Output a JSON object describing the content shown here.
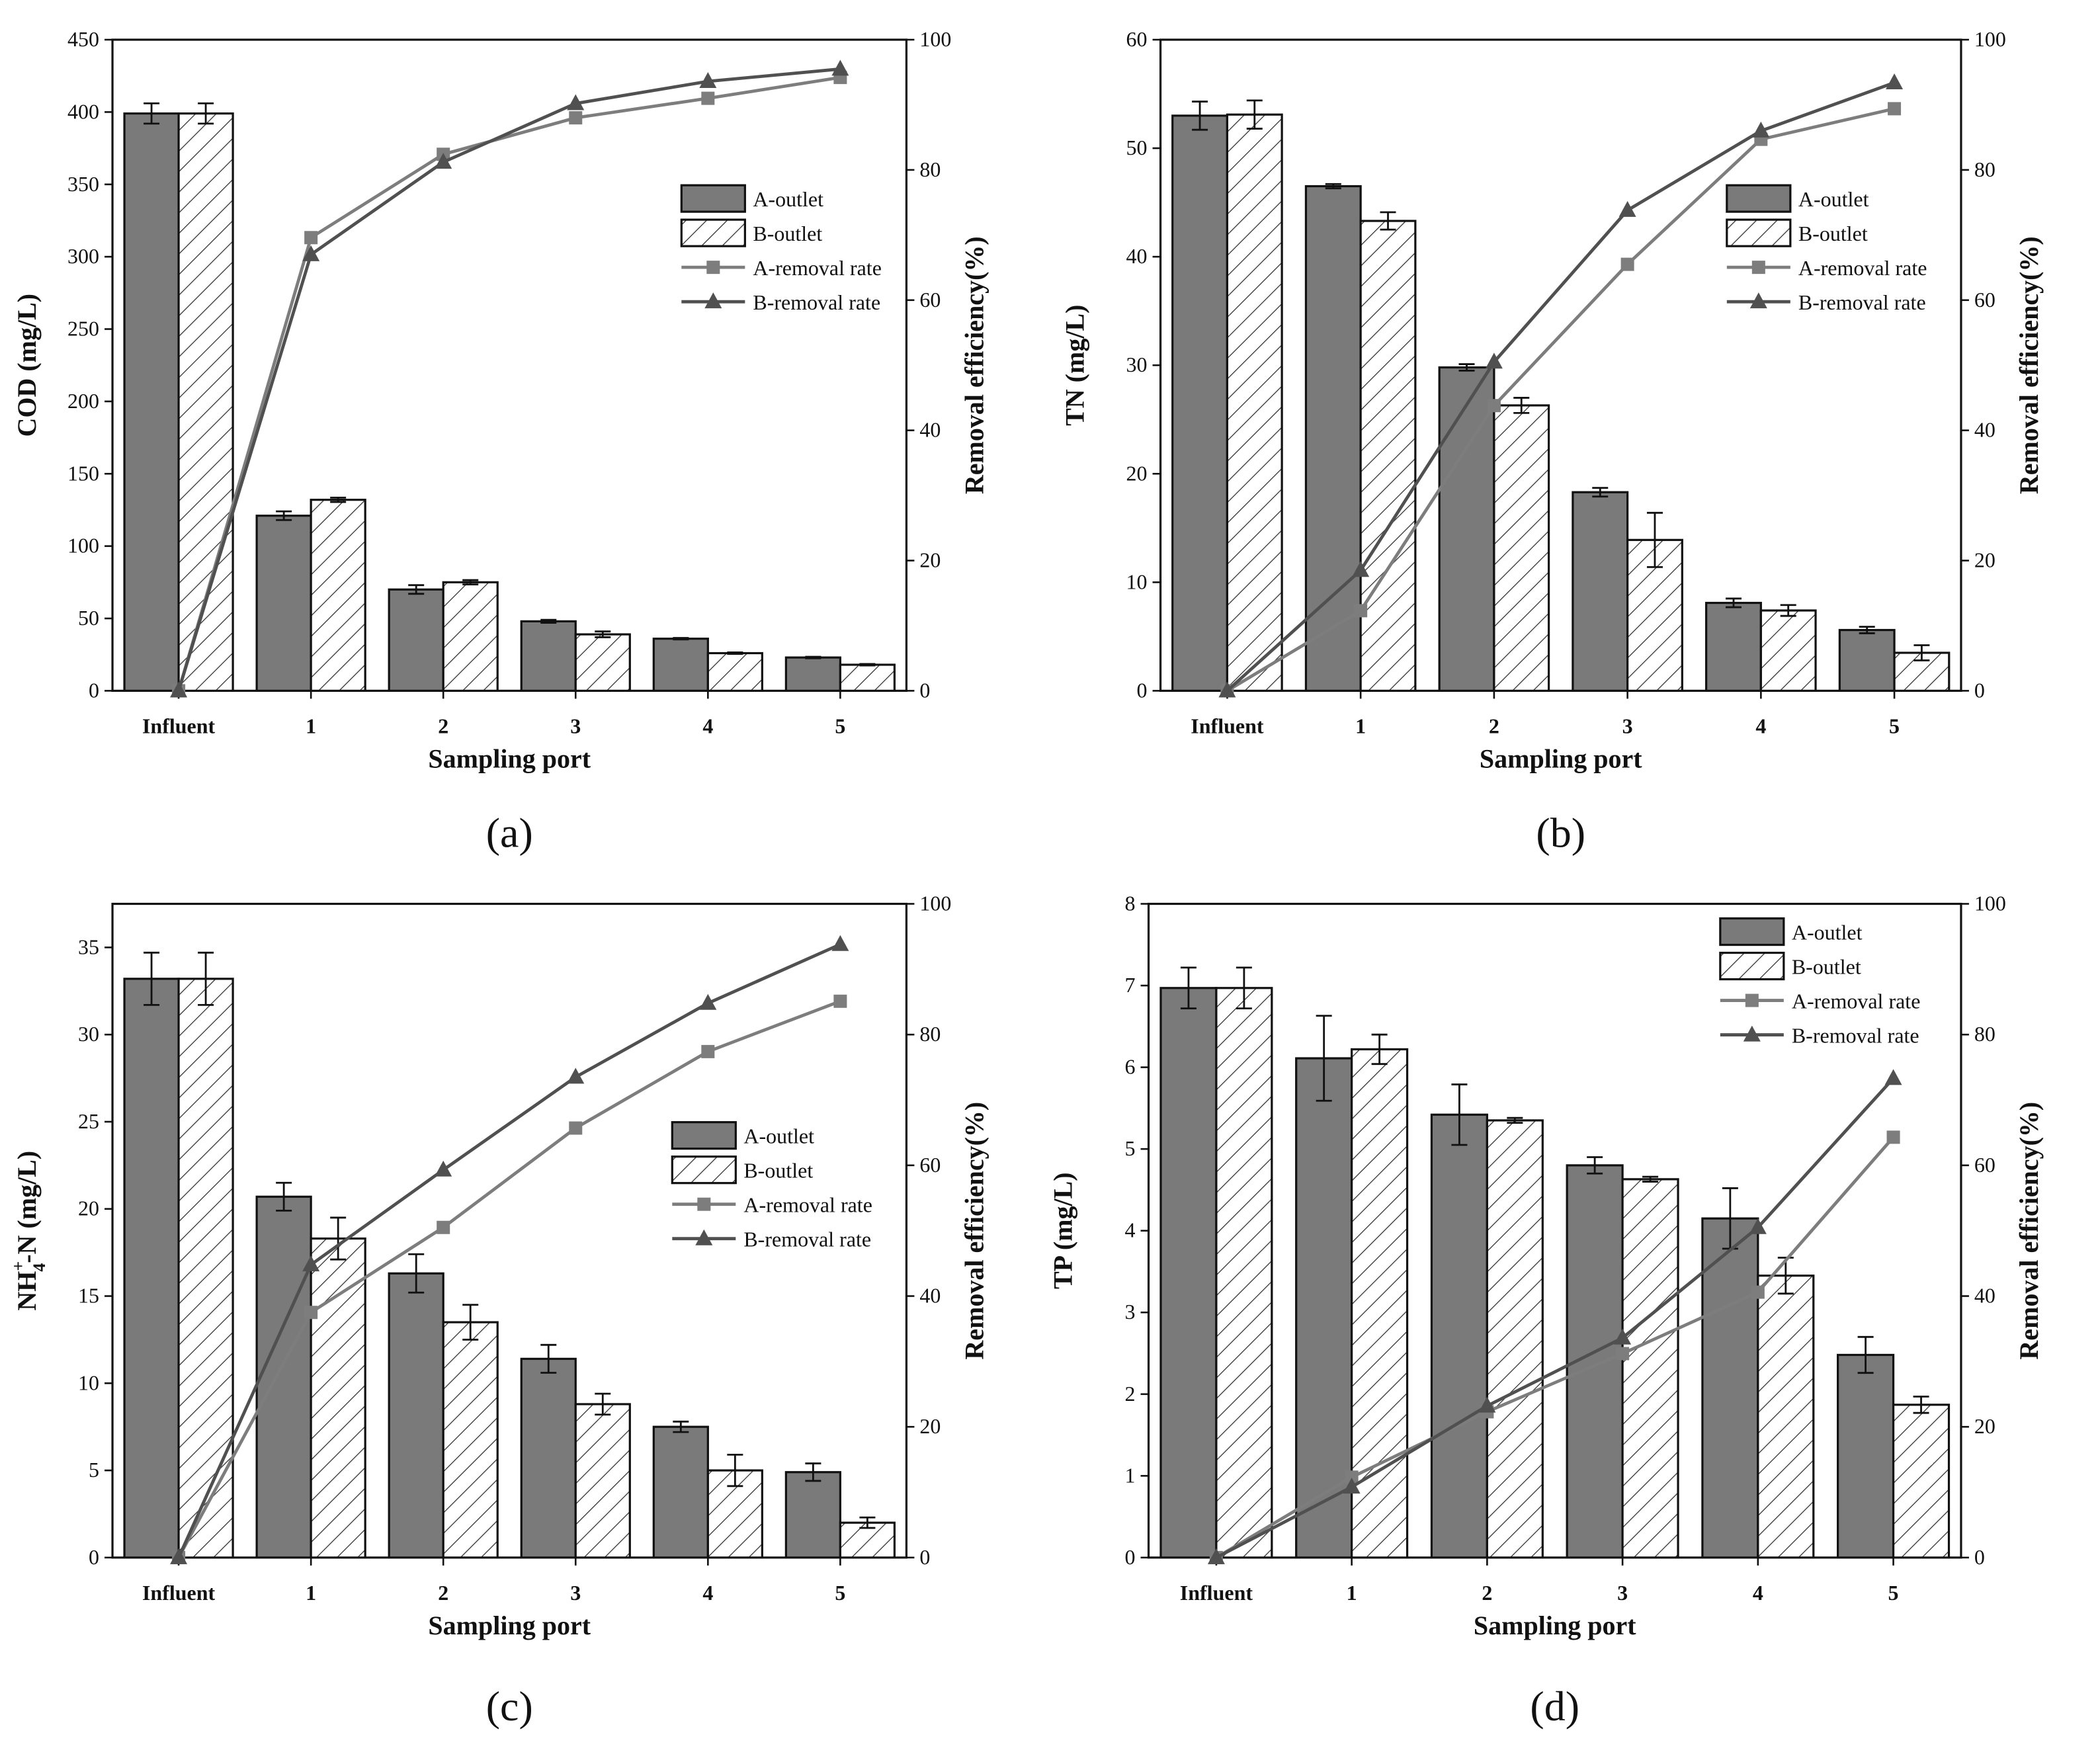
{
  "chart_data": [
    {
      "type": "bar",
      "panel_label": "(a)",
      "categories": [
        "Influent",
        "1",
        "2",
        "3",
        "4",
        "5"
      ],
      "xlabel": "Sampling port",
      "ylabel": "COD (mg/L)",
      "ylabel_main": "COD (mg/L)",
      "y2label": "Removal efficiency(%)",
      "ylim": [
        0,
        450
      ],
      "yticks": [
        "0",
        "50",
        "100",
        "150",
        "200",
        "250",
        "300",
        "350",
        "400",
        "450"
      ],
      "y2lim": [
        0,
        100
      ],
      "y2ticks": [
        "0",
        "20",
        "40",
        "60",
        "80",
        "100"
      ],
      "legend_position": "right-middle",
      "series": [
        {
          "name": "A-outlet",
          "kind": "bar",
          "fill": "grey",
          "values": [
            399,
            121,
            70,
            48,
            36,
            23
          ],
          "errors": [
            7,
            3,
            3,
            1,
            0.5,
            0.5
          ]
        },
        {
          "name": "B-outlet",
          "kind": "bar",
          "fill": "hatch",
          "values": [
            399,
            132,
            75,
            39,
            26,
            18
          ],
          "errors": [
            7,
            1.5,
            1.5,
            2,
            0.5,
            0.5
          ]
        },
        {
          "name": "A-removal rate",
          "kind": "line",
          "marker": "square",
          "axis": "right",
          "values": [
            0,
            69.6,
            82.4,
            88.0,
            91.0,
            94.2
          ]
        },
        {
          "name": "B-removal rate",
          "kind": "line",
          "marker": "triangle",
          "axis": "right",
          "values": [
            0,
            67.0,
            81.2,
            90.2,
            93.6,
            95.5
          ]
        }
      ]
    },
    {
      "type": "bar",
      "panel_label": "(b)",
      "categories": [
        "Influent",
        "1",
        "2",
        "3",
        "4",
        "5"
      ],
      "xlabel": "Sampling port",
      "ylabel": "TN (mg/L)",
      "ylabel_main": "TN (mg/L)",
      "y2label": "Removal efficiency(%)",
      "ylim": [
        0,
        60
      ],
      "yticks": [
        "0",
        "10",
        "20",
        "30",
        "40",
        "50",
        "60"
      ],
      "y2lim": [
        0,
        100
      ],
      "y2ticks": [
        "0",
        "20",
        "40",
        "60",
        "80",
        "100"
      ],
      "legend_position": "right-middle",
      "series": [
        {
          "name": "A-outlet",
          "kind": "bar",
          "fill": "grey",
          "values": [
            53.0,
            46.5,
            29.8,
            18.3,
            8.1,
            5.6
          ],
          "errors": [
            1.3,
            0.2,
            0.3,
            0.4,
            0.4,
            0.3
          ]
        },
        {
          "name": "B-outlet",
          "kind": "bar",
          "fill": "hatch",
          "values": [
            53.1,
            43.3,
            26.3,
            13.9,
            7.4,
            3.5
          ],
          "errors": [
            1.3,
            0.8,
            0.7,
            2.5,
            0.5,
            0.7
          ]
        },
        {
          "name": "A-removal rate",
          "kind": "line",
          "marker": "square",
          "axis": "right",
          "values": [
            0,
            12.3,
            43.8,
            65.5,
            84.7,
            89.4
          ]
        },
        {
          "name": "B-removal rate",
          "kind": "line",
          "marker": "triangle",
          "axis": "right",
          "values": [
            0,
            18.5,
            50.5,
            73.8,
            86.0,
            93.4
          ]
        }
      ]
    },
    {
      "type": "bar",
      "panel_label": "(c)",
      "categories": [
        "Influent",
        "1",
        "2",
        "3",
        "4",
        "5"
      ],
      "xlabel": "Sampling port",
      "ylabel": "NH4+-N (mg/L)",
      "ylabel_main": "NH",
      "ylabel_sub": "4",
      "ylabel_sup": "+",
      "ylabel_rest": "-N (mg/L)",
      "y2label": "Removal efficiency(%)",
      "ylim": [
        0,
        37.5
      ],
      "yticks": [
        "0",
        "5",
        "10",
        "15",
        "20",
        "25",
        "30",
        "35"
      ],
      "y2lim": [
        0,
        100
      ],
      "y2ticks": [
        "0",
        "20",
        "40",
        "60",
        "80",
        "100"
      ],
      "legend_position": "right-middle",
      "series": [
        {
          "name": "A-outlet",
          "kind": "bar",
          "fill": "grey",
          "values": [
            33.2,
            20.7,
            16.3,
            11.4,
            7.5,
            4.9
          ],
          "errors": [
            1.5,
            0.8,
            1.1,
            0.8,
            0.3,
            0.5
          ]
        },
        {
          "name": "B-outlet",
          "kind": "bar",
          "fill": "hatch",
          "values": [
            33.2,
            18.3,
            13.5,
            8.8,
            5.0,
            2.0
          ],
          "errors": [
            1.5,
            1.2,
            1.0,
            0.6,
            0.9,
            0.3
          ]
        },
        {
          "name": "A-removal rate",
          "kind": "line",
          "marker": "square",
          "axis": "right",
          "values": [
            0,
            37.5,
            50.5,
            65.7,
            77.4,
            85.1
          ]
        },
        {
          "name": "B-removal rate",
          "kind": "line",
          "marker": "triangle",
          "axis": "right",
          "values": [
            0,
            44.8,
            59.3,
            73.5,
            84.8,
            93.8
          ]
        }
      ]
    },
    {
      "type": "bar",
      "panel_label": "(d)",
      "categories": [
        "Influent",
        "1",
        "2",
        "3",
        "4",
        "5"
      ],
      "xlabel": "Sampling port",
      "ylabel": "TP (mg/L)",
      "ylabel_main": "TP (mg/L)",
      "y2label": "Removal efficiency(%)",
      "ylim": [
        0,
        8
      ],
      "yticks": [
        "0",
        "1",
        "2",
        "3",
        "4",
        "5",
        "6",
        "7",
        "8"
      ],
      "y2lim": [
        0,
        100
      ],
      "y2ticks": [
        "0",
        "20",
        "40",
        "60",
        "80",
        "100"
      ],
      "legend_position": "top-right",
      "series": [
        {
          "name": "A-outlet",
          "kind": "bar",
          "fill": "grey",
          "values": [
            6.97,
            6.11,
            5.42,
            4.8,
            4.15,
            2.48
          ],
          "errors": [
            0.25,
            0.52,
            0.37,
            0.1,
            0.37,
            0.22
          ]
        },
        {
          "name": "B-outlet",
          "kind": "bar",
          "fill": "hatch",
          "values": [
            6.97,
            6.22,
            5.35,
            4.63,
            3.45,
            1.87
          ],
          "errors": [
            0.25,
            0.18,
            0.03,
            0.03,
            0.22,
            0.1
          ]
        },
        {
          "name": "A-removal rate",
          "kind": "line",
          "marker": "square",
          "axis": "right",
          "values": [
            0,
            12.3,
            22.3,
            31.2,
            40.6,
            64.3
          ]
        },
        {
          "name": "B-removal rate",
          "kind": "line",
          "marker": "triangle",
          "axis": "right",
          "values": [
            0,
            10.8,
            23.2,
            33.6,
            50.5,
            73.3
          ]
        }
      ]
    }
  ]
}
